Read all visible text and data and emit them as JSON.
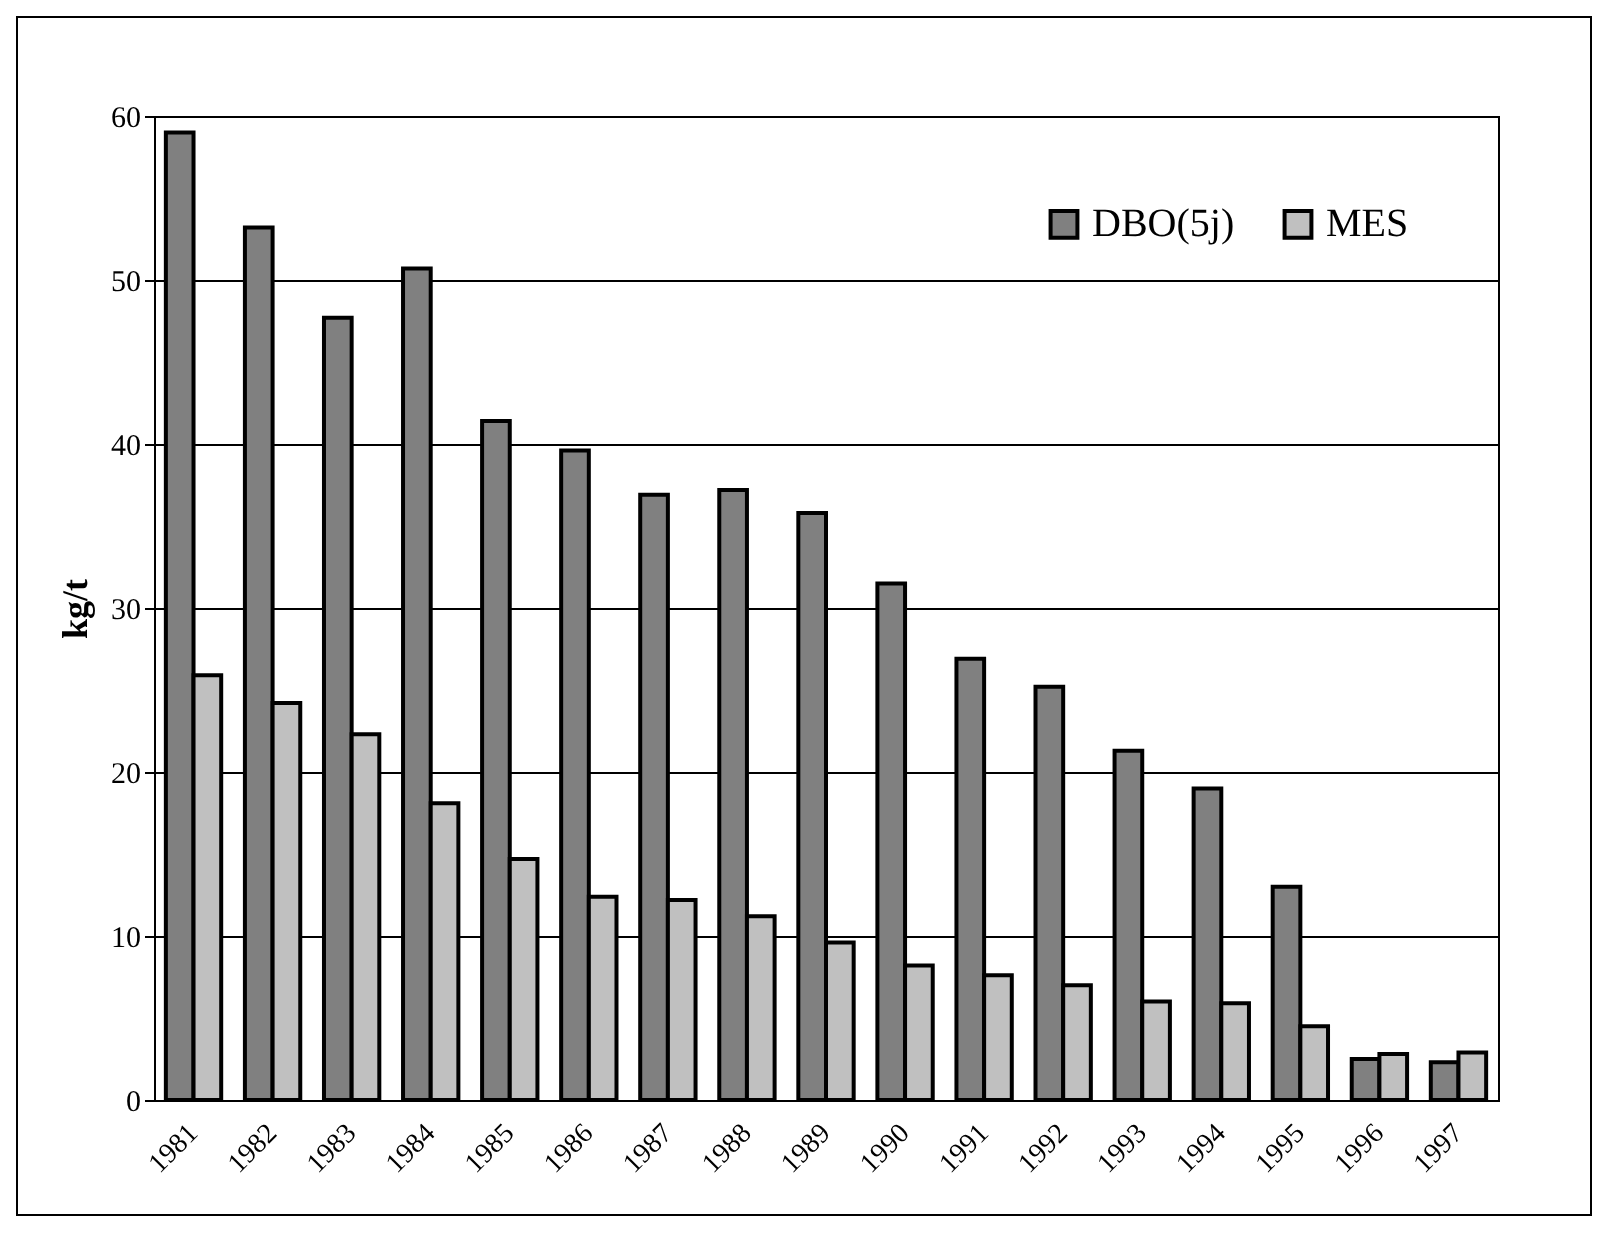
{
  "chart_data": {
    "type": "bar",
    "ylabel": "kg/t",
    "categories": [
      "1981",
      "1982",
      "1983",
      "1984",
      "1985",
      "1986",
      "1987",
      "1988",
      "1989",
      "1990",
      "1991",
      "1992",
      "1993",
      "1994",
      "1995",
      "1996",
      "1997"
    ],
    "series": [
      {
        "name": "DBO(5j)",
        "color": "#808080",
        "values": [
          59,
          53.2,
          47.7,
          50.7,
          41.4,
          39.6,
          36.9,
          37.2,
          35.8,
          31.5,
          26.9,
          25.2,
          21.3,
          19,
          13,
          2.5,
          2.3
        ]
      },
      {
        "name": "MES",
        "color": "#c0c0c0",
        "values": [
          25.9,
          24.2,
          22.3,
          18.1,
          14.7,
          12.4,
          12.2,
          11.2,
          9.6,
          8.2,
          7.6,
          7,
          6,
          5.9,
          4.5,
          2.8,
          2.9
        ]
      }
    ],
    "ylim": [
      0,
      60
    ],
    "yticks": [
      0,
      10,
      20,
      30,
      40,
      50,
      60
    ],
    "grid": "y",
    "legend": "top right"
  }
}
